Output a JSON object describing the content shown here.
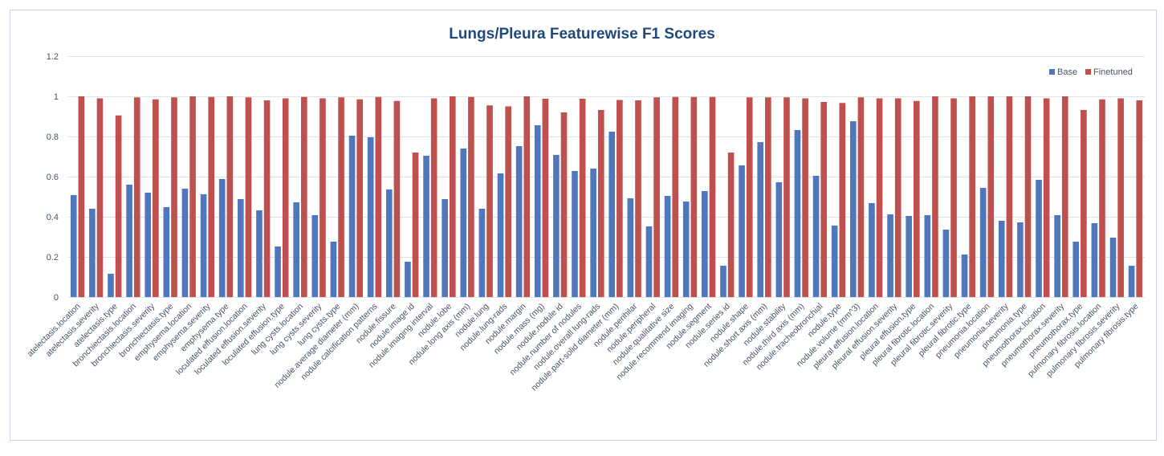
{
  "chart_data": {
    "type": "bar",
    "title": "Lungs/Pleura Featurewise F1 Scores",
    "xlabel": "",
    "ylabel": "",
    "ylim": [
      0,
      1.2
    ],
    "yticks": [
      "0",
      "0.2",
      "0.4",
      "0.6",
      "0.8",
      "1",
      "1.2"
    ],
    "grid": true,
    "legend_position": "top-right",
    "colors": {
      "Base": "#4f77be",
      "Finetuned": "#c0504d"
    },
    "categories": [
      "atelectasis.location",
      "atelectasis.severity",
      "atelectasis.type",
      "bronchiectasis.location",
      "bronchiectasis.severity",
      "bronchiectasis.type",
      "emphysema.location",
      "emphysema.severity",
      "emphysema.type",
      "loculated effusion.location",
      "loculated effusion.severity",
      "loculated effusion.type",
      "lung cysts.location",
      "lung cysts.severity",
      "lung cysts.type",
      "nodule.average diameter (mm)",
      "nodule.calcification patterns",
      "nodule.fissure",
      "nodule.image id",
      "nodule.imaging interval",
      "nodule.lobe",
      "nodule.long axis (mm)",
      "nodule.lung",
      "nodule.lung-rads",
      "nodule.margin",
      "nodule.mass (mg)",
      "nodule.nodule id",
      "nodule.number of nodules",
      "nodule.overall lung-rads",
      "nodule.part-solid diameter (mm)",
      "nodule.perihilar",
      "nodule.peripheral",
      "nodule.qualitative size",
      "nodule.recommend imaging",
      "nodule.segment",
      "nodule.series id",
      "nodule.shape",
      "nodule.short axis (mm)",
      "nodule.stability",
      "nodule.third axis (mm)",
      "nodule.tracheobronchial",
      "nodule.type",
      "nodule.volume (mm^3)",
      "pleural effusion.location",
      "pleural effusion.severity",
      "pleural effusion.type",
      "pleural fibrotic.location",
      "pleural fibrotic.severity",
      "pleural fibrotic.type",
      "pneumonia.location",
      "pneumonia.severity",
      "pneumonia.type",
      "pneumothorax.location",
      "pneumothorax.severity",
      "pneumothorax.type",
      "pulmonary fibrosis.location",
      "pulmonary fibrosis.severity",
      "pulmonary fibrosis.type"
    ],
    "series": [
      {
        "name": "Base",
        "values": [
          0.508,
          0.44,
          0.116,
          0.56,
          0.52,
          0.448,
          0.54,
          0.512,
          0.588,
          0.488,
          0.432,
          0.252,
          0.472,
          0.408,
          0.276,
          0.804,
          0.796,
          0.536,
          0.176,
          0.704,
          0.488,
          0.74,
          0.44,
          0.616,
          0.752,
          0.856,
          0.708,
          0.628,
          0.64,
          0.824,
          0.492,
          0.352,
          0.504,
          0.476,
          0.528,
          0.156,
          0.656,
          0.772,
          0.572,
          0.832,
          0.604,
          0.356,
          0.876,
          0.468,
          0.412,
          0.404,
          0.408,
          0.336,
          0.212,
          0.544,
          0.38,
          0.372,
          0.584,
          0.408,
          0.276,
          0.368,
          0.296,
          0.156
        ]
      },
      {
        "name": "Finetuned",
        "values": [
          1.0,
          0.99,
          0.905,
          0.995,
          0.985,
          0.995,
          1.0,
          0.997,
          1.0,
          0.995,
          0.98,
          0.99,
          0.997,
          0.99,
          0.995,
          0.985,
          0.997,
          0.977,
          0.72,
          0.99,
          1.0,
          0.997,
          0.955,
          0.95,
          1.0,
          0.988,
          0.92,
          0.988,
          0.932,
          0.982,
          0.98,
          0.995,
          0.997,
          0.997,
          0.997,
          0.72,
          0.995,
          0.995,
          0.995,
          0.99,
          0.972,
          0.967,
          0.995,
          0.99,
          0.99,
          0.977,
          1.0,
          0.99,
          1.0,
          1.0,
          1.0,
          1.0,
          0.99,
          1.0,
          0.932,
          0.985,
          0.99,
          0.98
        ]
      }
    ]
  }
}
